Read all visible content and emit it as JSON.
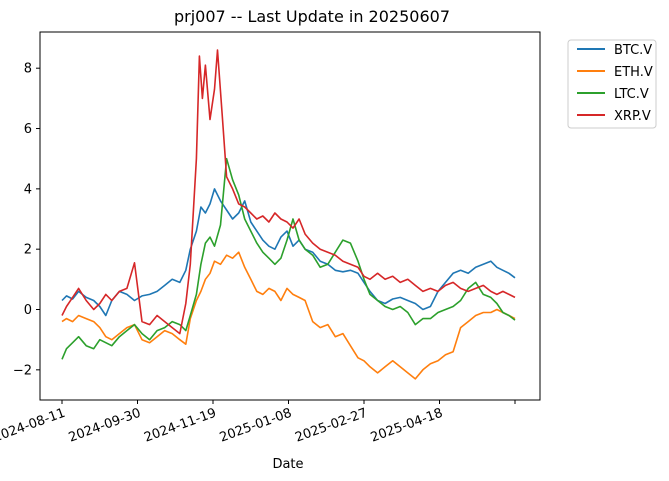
{
  "chart_data": {
    "type": "line",
    "title": "prj007 -- Last Update in 20250607",
    "xlabel": "Date",
    "ylabel": "",
    "x_ticks": [
      "2024-08-11",
      "2024-09-30",
      "2024-11-19",
      "2025-01-08",
      "2025-02-27",
      "2025-04-18"
    ],
    "x_range": [
      "2024-08-11",
      "2025-06-07"
    ],
    "ylim": [
      -3.0,
      9.2
    ],
    "y_ticks": [
      -2,
      0,
      2,
      4,
      6,
      8
    ],
    "legend_position": "outside-top-right",
    "grid": false,
    "series": [
      {
        "name": "BTC.V",
        "color": "#1f77b4",
        "points": [
          [
            "2024-08-11",
            0.3
          ],
          [
            "2024-08-14",
            0.45
          ],
          [
            "2024-08-18",
            0.35
          ],
          [
            "2024-08-22",
            0.6
          ],
          [
            "2024-08-27",
            0.4
          ],
          [
            "2024-09-01",
            0.3
          ],
          [
            "2024-09-05",
            0.1
          ],
          [
            "2024-09-09",
            -0.2
          ],
          [
            "2024-09-13",
            0.3
          ],
          [
            "2024-09-18",
            0.6
          ],
          [
            "2024-09-23",
            0.5
          ],
          [
            "2024-09-28",
            0.3
          ],
          [
            "2024-10-03",
            0.45
          ],
          [
            "2024-10-08",
            0.5
          ],
          [
            "2024-10-13",
            0.6
          ],
          [
            "2024-10-18",
            0.8
          ],
          [
            "2024-10-23",
            1.0
          ],
          [
            "2024-10-28",
            0.9
          ],
          [
            "2024-11-01",
            1.3
          ],
          [
            "2024-11-04",
            2.0
          ],
          [
            "2024-11-08",
            2.6
          ],
          [
            "2024-11-11",
            3.4
          ],
          [
            "2024-11-14",
            3.2
          ],
          [
            "2024-11-17",
            3.5
          ],
          [
            "2024-11-20",
            4.0
          ],
          [
            "2024-11-24",
            3.6
          ],
          [
            "2024-11-28",
            3.3
          ],
          [
            "2024-12-02",
            3.0
          ],
          [
            "2024-12-06",
            3.2
          ],
          [
            "2024-12-10",
            3.6
          ],
          [
            "2024-12-14",
            2.9
          ],
          [
            "2024-12-18",
            2.6
          ],
          [
            "2024-12-22",
            2.3
          ],
          [
            "2024-12-26",
            2.1
          ],
          [
            "2024-12-30",
            2.0
          ],
          [
            "2025-01-03",
            2.4
          ],
          [
            "2025-01-07",
            2.6
          ],
          [
            "2025-01-11",
            2.1
          ],
          [
            "2025-01-15",
            2.3
          ],
          [
            "2025-01-19",
            2.0
          ],
          [
            "2025-01-24",
            1.9
          ],
          [
            "2025-01-29",
            1.6
          ],
          [
            "2025-02-03",
            1.5
          ],
          [
            "2025-02-08",
            1.3
          ],
          [
            "2025-02-13",
            1.25
          ],
          [
            "2025-02-18",
            1.3
          ],
          [
            "2025-02-23",
            1.2
          ],
          [
            "2025-02-27",
            0.9
          ],
          [
            "2025-03-03",
            0.6
          ],
          [
            "2025-03-08",
            0.3
          ],
          [
            "2025-03-13",
            0.2
          ],
          [
            "2025-03-18",
            0.35
          ],
          [
            "2025-03-23",
            0.4
          ],
          [
            "2025-03-28",
            0.3
          ],
          [
            "2025-04-02",
            0.2
          ],
          [
            "2025-04-07",
            0.0
          ],
          [
            "2025-04-12",
            0.1
          ],
          [
            "2025-04-17",
            0.6
          ],
          [
            "2025-04-22",
            0.9
          ],
          [
            "2025-04-27",
            1.2
          ],
          [
            "2025-05-02",
            1.3
          ],
          [
            "2025-05-07",
            1.2
          ],
          [
            "2025-05-12",
            1.4
          ],
          [
            "2025-05-17",
            1.5
          ],
          [
            "2025-05-22",
            1.6
          ],
          [
            "2025-05-26",
            1.4
          ],
          [
            "2025-05-30",
            1.3
          ],
          [
            "2025-06-03",
            1.2
          ],
          [
            "2025-06-07",
            1.05
          ]
        ]
      },
      {
        "name": "ETH.V",
        "color": "#ff7f0e",
        "points": [
          [
            "2024-08-11",
            -0.4
          ],
          [
            "2024-08-14",
            -0.3
          ],
          [
            "2024-08-18",
            -0.4
          ],
          [
            "2024-08-22",
            -0.2
          ],
          [
            "2024-08-27",
            -0.3
          ],
          [
            "2024-09-01",
            -0.4
          ],
          [
            "2024-09-05",
            -0.6
          ],
          [
            "2024-09-09",
            -0.9
          ],
          [
            "2024-09-13",
            -1.0
          ],
          [
            "2024-09-18",
            -0.8
          ],
          [
            "2024-09-23",
            -0.6
          ],
          [
            "2024-09-28",
            -0.5
          ],
          [
            "2024-10-03",
            -1.0
          ],
          [
            "2024-10-08",
            -1.1
          ],
          [
            "2024-10-13",
            -0.9
          ],
          [
            "2024-10-18",
            -0.7
          ],
          [
            "2024-10-23",
            -0.8
          ],
          [
            "2024-10-28",
            -1.0
          ],
          [
            "2024-11-01",
            -1.15
          ],
          [
            "2024-11-04",
            -0.3
          ],
          [
            "2024-11-08",
            0.3
          ],
          [
            "2024-11-11",
            0.6
          ],
          [
            "2024-11-14",
            1.0
          ],
          [
            "2024-11-17",
            1.2
          ],
          [
            "2024-11-20",
            1.6
          ],
          [
            "2024-11-24",
            1.5
          ],
          [
            "2024-11-28",
            1.8
          ],
          [
            "2024-12-02",
            1.7
          ],
          [
            "2024-12-06",
            1.9
          ],
          [
            "2024-12-10",
            1.4
          ],
          [
            "2024-12-14",
            1.0
          ],
          [
            "2024-12-18",
            0.6
          ],
          [
            "2024-12-22",
            0.5
          ],
          [
            "2024-12-26",
            0.7
          ],
          [
            "2024-12-30",
            0.6
          ],
          [
            "2025-01-03",
            0.3
          ],
          [
            "2025-01-07",
            0.7
          ],
          [
            "2025-01-11",
            0.5
          ],
          [
            "2025-01-15",
            0.4
          ],
          [
            "2025-01-19",
            0.3
          ],
          [
            "2025-01-24",
            -0.4
          ],
          [
            "2025-01-29",
            -0.6
          ],
          [
            "2025-02-03",
            -0.5
          ],
          [
            "2025-02-08",
            -0.9
          ],
          [
            "2025-02-13",
            -0.8
          ],
          [
            "2025-02-18",
            -1.2
          ],
          [
            "2025-02-23",
            -1.6
          ],
          [
            "2025-02-27",
            -1.7
          ],
          [
            "2025-03-03",
            -1.9
          ],
          [
            "2025-03-08",
            -2.1
          ],
          [
            "2025-03-13",
            -1.9
          ],
          [
            "2025-03-18",
            -1.7
          ],
          [
            "2025-03-23",
            -1.9
          ],
          [
            "2025-03-28",
            -2.1
          ],
          [
            "2025-04-02",
            -2.3
          ],
          [
            "2025-04-07",
            -2.0
          ],
          [
            "2025-04-12",
            -1.8
          ],
          [
            "2025-04-17",
            -1.7
          ],
          [
            "2025-04-22",
            -1.5
          ],
          [
            "2025-04-27",
            -1.4
          ],
          [
            "2025-05-02",
            -0.6
          ],
          [
            "2025-05-07",
            -0.4
          ],
          [
            "2025-05-12",
            -0.2
          ],
          [
            "2025-05-17",
            -0.1
          ],
          [
            "2025-05-22",
            -0.1
          ],
          [
            "2025-05-26",
            0.0
          ],
          [
            "2025-05-30",
            -0.1
          ],
          [
            "2025-06-03",
            -0.2
          ],
          [
            "2025-06-07",
            -0.3
          ]
        ]
      },
      {
        "name": "LTC.V",
        "color": "#2ca02c",
        "points": [
          [
            "2024-08-11",
            -1.65
          ],
          [
            "2024-08-14",
            -1.3
          ],
          [
            "2024-08-18",
            -1.1
          ],
          [
            "2024-08-22",
            -0.9
          ],
          [
            "2024-08-27",
            -1.2
          ],
          [
            "2024-09-01",
            -1.3
          ],
          [
            "2024-09-05",
            -1.0
          ],
          [
            "2024-09-09",
            -1.1
          ],
          [
            "2024-09-13",
            -1.2
          ],
          [
            "2024-09-18",
            -0.9
          ],
          [
            "2024-09-23",
            -0.7
          ],
          [
            "2024-09-28",
            -0.5
          ],
          [
            "2024-10-03",
            -0.8
          ],
          [
            "2024-10-08",
            -1.0
          ],
          [
            "2024-10-13",
            -0.7
          ],
          [
            "2024-10-18",
            -0.6
          ],
          [
            "2024-10-23",
            -0.4
          ],
          [
            "2024-10-28",
            -0.5
          ],
          [
            "2024-11-01",
            -0.7
          ],
          [
            "2024-11-04",
            -0.2
          ],
          [
            "2024-11-08",
            0.5
          ],
          [
            "2024-11-11",
            1.5
          ],
          [
            "2024-11-14",
            2.2
          ],
          [
            "2024-11-17",
            2.4
          ],
          [
            "2024-11-20",
            2.1
          ],
          [
            "2024-11-24",
            2.8
          ],
          [
            "2024-11-28",
            5.0
          ],
          [
            "2024-12-02",
            4.3
          ],
          [
            "2024-12-06",
            3.8
          ],
          [
            "2024-12-10",
            3.0
          ],
          [
            "2024-12-14",
            2.6
          ],
          [
            "2024-12-18",
            2.2
          ],
          [
            "2024-12-22",
            1.9
          ],
          [
            "2024-12-26",
            1.7
          ],
          [
            "2024-12-30",
            1.5
          ],
          [
            "2025-01-03",
            1.7
          ],
          [
            "2025-01-07",
            2.3
          ],
          [
            "2025-01-11",
            3.0
          ],
          [
            "2025-01-15",
            2.3
          ],
          [
            "2025-01-19",
            2.0
          ],
          [
            "2025-01-24",
            1.8
          ],
          [
            "2025-01-29",
            1.4
          ],
          [
            "2025-02-03",
            1.5
          ],
          [
            "2025-02-08",
            1.9
          ],
          [
            "2025-02-13",
            2.3
          ],
          [
            "2025-02-18",
            2.2
          ],
          [
            "2025-02-23",
            1.6
          ],
          [
            "2025-02-27",
            1.0
          ],
          [
            "2025-03-03",
            0.5
          ],
          [
            "2025-03-08",
            0.3
          ],
          [
            "2025-03-13",
            0.1
          ],
          [
            "2025-03-18",
            0.0
          ],
          [
            "2025-03-23",
            0.1
          ],
          [
            "2025-03-28",
            -0.1
          ],
          [
            "2025-04-02",
            -0.5
          ],
          [
            "2025-04-07",
            -0.3
          ],
          [
            "2025-04-12",
            -0.3
          ],
          [
            "2025-04-17",
            -0.1
          ],
          [
            "2025-04-22",
            0.0
          ],
          [
            "2025-04-27",
            0.1
          ],
          [
            "2025-05-02",
            0.3
          ],
          [
            "2025-05-07",
            0.7
          ],
          [
            "2025-05-12",
            0.9
          ],
          [
            "2025-05-17",
            0.5
          ],
          [
            "2025-05-22",
            0.4
          ],
          [
            "2025-05-26",
            0.2
          ],
          [
            "2025-05-30",
            -0.1
          ],
          [
            "2025-06-03",
            -0.2
          ],
          [
            "2025-06-07",
            -0.35
          ]
        ]
      },
      {
        "name": "XRP.V",
        "color": "#d62728",
        "points": [
          [
            "2024-08-11",
            -0.2
          ],
          [
            "2024-08-14",
            0.1
          ],
          [
            "2024-08-18",
            0.4
          ],
          [
            "2024-08-22",
            0.7
          ],
          [
            "2024-08-27",
            0.3
          ],
          [
            "2024-09-01",
            0.0
          ],
          [
            "2024-09-05",
            0.2
          ],
          [
            "2024-09-09",
            0.5
          ],
          [
            "2024-09-13",
            0.3
          ],
          [
            "2024-09-18",
            0.6
          ],
          [
            "2024-09-23",
            0.7
          ],
          [
            "2024-09-28",
            1.55
          ],
          [
            "2024-10-03",
            -0.4
          ],
          [
            "2024-10-08",
            -0.5
          ],
          [
            "2024-10-13",
            -0.2
          ],
          [
            "2024-10-18",
            -0.4
          ],
          [
            "2024-10-23",
            -0.6
          ],
          [
            "2024-10-28",
            -0.8
          ],
          [
            "2024-11-01",
            0.2
          ],
          [
            "2024-11-04",
            1.5
          ],
          [
            "2024-11-08",
            5.0
          ],
          [
            "2024-11-10",
            8.4
          ],
          [
            "2024-11-12",
            7.0
          ],
          [
            "2024-11-14",
            8.1
          ],
          [
            "2024-11-17",
            6.3
          ],
          [
            "2024-11-20",
            7.3
          ],
          [
            "2024-11-22",
            8.6
          ],
          [
            "2024-11-25",
            6.5
          ],
          [
            "2024-11-28",
            4.4
          ],
          [
            "2024-12-02",
            4.0
          ],
          [
            "2024-12-06",
            3.5
          ],
          [
            "2024-12-10",
            3.4
          ],
          [
            "2024-12-14",
            3.2
          ],
          [
            "2024-12-18",
            3.0
          ],
          [
            "2024-12-22",
            3.1
          ],
          [
            "2024-12-26",
            2.9
          ],
          [
            "2024-12-30",
            3.2
          ],
          [
            "2025-01-03",
            3.0
          ],
          [
            "2025-01-07",
            2.9
          ],
          [
            "2025-01-11",
            2.7
          ],
          [
            "2025-01-15",
            3.0
          ],
          [
            "2025-01-19",
            2.5
          ],
          [
            "2025-01-24",
            2.2
          ],
          [
            "2025-01-29",
            2.0
          ],
          [
            "2025-02-03",
            1.9
          ],
          [
            "2025-02-08",
            1.8
          ],
          [
            "2025-02-13",
            1.6
          ],
          [
            "2025-02-18",
            1.5
          ],
          [
            "2025-02-23",
            1.4
          ],
          [
            "2025-02-27",
            1.1
          ],
          [
            "2025-03-03",
            1.0
          ],
          [
            "2025-03-08",
            1.2
          ],
          [
            "2025-03-13",
            1.0
          ],
          [
            "2025-03-18",
            1.1
          ],
          [
            "2025-03-23",
            0.9
          ],
          [
            "2025-03-28",
            1.0
          ],
          [
            "2025-04-02",
            0.8
          ],
          [
            "2025-04-07",
            0.6
          ],
          [
            "2025-04-12",
            0.7
          ],
          [
            "2025-04-17",
            0.6
          ],
          [
            "2025-04-22",
            0.8
          ],
          [
            "2025-04-27",
            0.9
          ],
          [
            "2025-05-02",
            0.7
          ],
          [
            "2025-05-07",
            0.6
          ],
          [
            "2025-05-12",
            0.7
          ],
          [
            "2025-05-17",
            0.8
          ],
          [
            "2025-05-22",
            0.6
          ],
          [
            "2025-05-26",
            0.5
          ],
          [
            "2025-05-30",
            0.6
          ],
          [
            "2025-06-03",
            0.5
          ],
          [
            "2025-06-07",
            0.4
          ]
        ]
      }
    ]
  }
}
